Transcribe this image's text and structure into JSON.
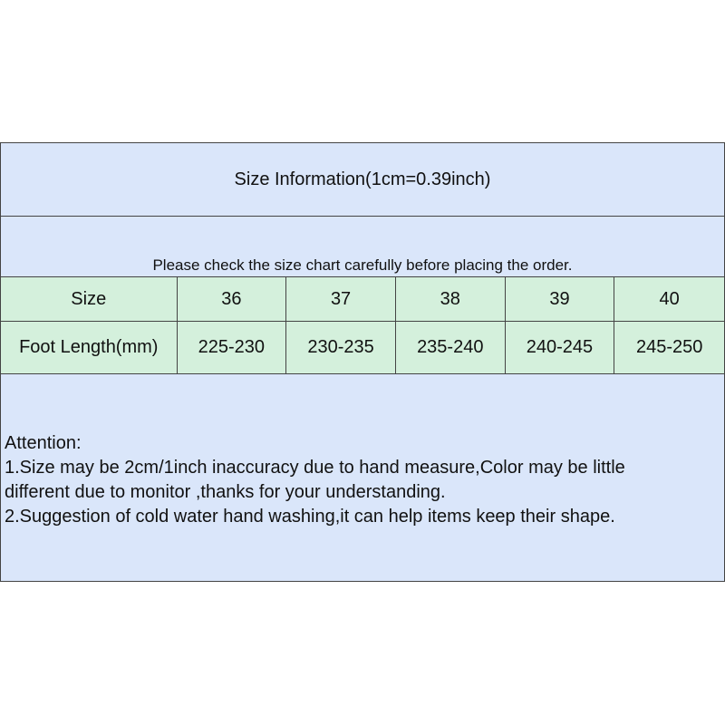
{
  "title": "Size Information(1cm=0.39inch)",
  "note": "Please check the size chart carefully before placing the order.",
  "table": {
    "header": [
      "Size",
      "36",
      "37",
      "38",
      "39",
      "40"
    ],
    "rows": [
      [
        "Foot Length(mm)",
        "225-230",
        "230-235",
        "235-240",
        "240-245",
        "245-250"
      ]
    ]
  },
  "attention": {
    "heading": "Attention:",
    "lines": [
      "1.Size may be 2cm/1inch inaccuracy due to hand measure,Color may be little",
      "different due to monitor ,thanks for your understanding.",
      "2.Suggestion of cold water hand washing,it can help items keep their shape."
    ]
  },
  "colors": {
    "blue": "#dae6fa",
    "green": "#d4f0dc"
  }
}
